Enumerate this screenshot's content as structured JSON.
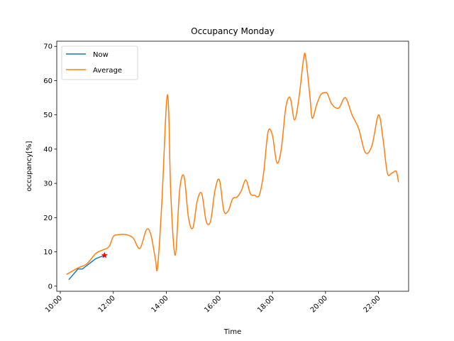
{
  "chart_data": {
    "type": "line",
    "title": "Occupancy Monday",
    "xlabel": "Time",
    "ylabel": "occupancy[%]",
    "x_ticks": [
      "10:00",
      "12:00",
      "14:00",
      "16:00",
      "18:00",
      "20:00",
      "22:00"
    ],
    "y_ticks": [
      "0",
      "10",
      "20",
      "30",
      "40",
      "50",
      "60",
      "70"
    ],
    "xlim": [
      "09:52",
      "23:08"
    ],
    "ylim": [
      -1.5,
      71.5
    ],
    "legend_position": "top-left",
    "grid": false,
    "series": [
      {
        "name": "Now",
        "color": "#1f77b4",
        "x": [
          "10:20",
          "10:40",
          "10:50",
          "11:00",
          "11:20",
          "11:40"
        ],
        "y": [
          2,
          5,
          5,
          6,
          8,
          9
        ]
      },
      {
        "name": "Average",
        "color": "#ff7f0e",
        "x": [
          "10:15",
          "10:40",
          "11:00",
          "11:20",
          "11:35",
          "11:50",
          "12:00",
          "12:10",
          "12:30",
          "12:45",
          "13:00",
          "13:15",
          "13:25",
          "13:35",
          "13:40",
          "13:50",
          "14:00",
          "14:05",
          "14:10",
          "14:20",
          "14:30",
          "14:40",
          "14:50",
          "15:00",
          "15:10",
          "15:20",
          "15:30",
          "15:40",
          "15:50",
          "16:00",
          "16:10",
          "16:20",
          "16:30",
          "16:40",
          "16:50",
          "17:00",
          "17:10",
          "17:20",
          "17:30",
          "17:40",
          "17:50",
          "18:00",
          "18:10",
          "18:20",
          "18:30",
          "18:40",
          "18:50",
          "19:00",
          "19:10",
          "19:15",
          "19:25",
          "19:30",
          "19:40",
          "19:50",
          "20:00",
          "20:05",
          "20:15",
          "20:30",
          "20:45",
          "21:00",
          "21:15",
          "21:30",
          "21:45",
          "22:00",
          "22:10",
          "22:20",
          "22:30",
          "22:40",
          "22:45"
        ],
        "y": [
          3.5,
          5.3,
          6.5,
          9.5,
          10.5,
          11.5,
          14.5,
          15,
          15,
          14,
          11,
          16.5,
          15,
          8,
          5.5,
          25,
          53,
          52,
          27,
          9,
          28,
          32,
          20,
          17,
          25,
          27,
          19,
          19,
          28,
          31,
          22,
          22,
          25.5,
          26,
          28,
          31,
          27,
          26.5,
          26.5,
          33,
          45,
          44,
          36,
          40,
          52,
          55,
          48.5,
          55,
          66,
          67,
          55,
          49,
          53,
          56,
          56.5,
          56,
          53,
          52,
          55,
          50,
          46,
          39,
          41,
          50,
          43,
          33,
          33,
          33.5,
          30.5
        ]
      }
    ],
    "annotations": [
      {
        "type": "marker",
        "marker": "star",
        "color": "#ff0000",
        "x": "11:40",
        "y": 9
      }
    ]
  }
}
